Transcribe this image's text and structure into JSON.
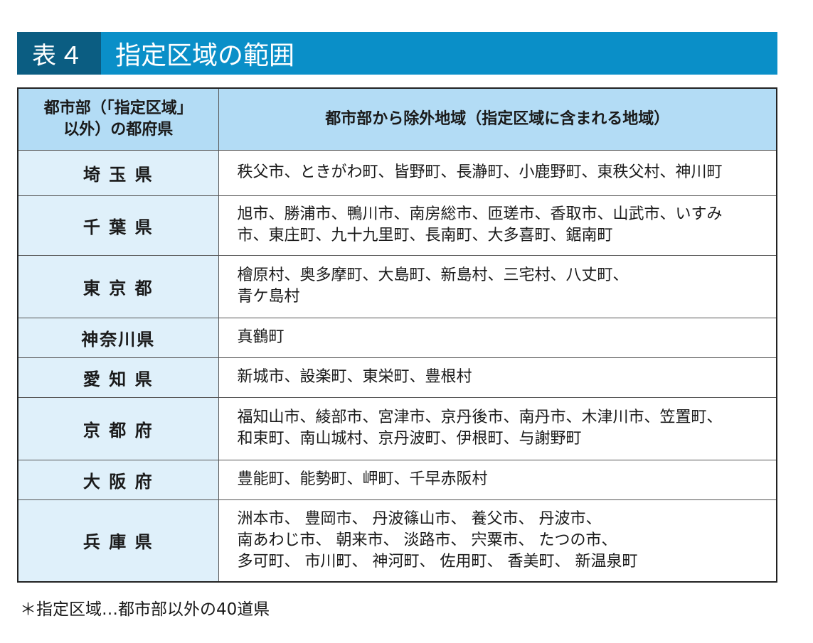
{
  "title": {
    "number": "表４",
    "text": "指定区域の範囲"
  },
  "table": {
    "headers": [
      "都市部（「指定区域」以外）の都府県",
      "都市部から除外地域（指定区域に含まれる地域）"
    ],
    "header_lines": [
      [
        "都市部（「指定区域」",
        "以外）の都府県"
      ]
    ],
    "rows": [
      {
        "pref": "埼 玉 県",
        "lines": [
          "秩父市、ときがわ町、皆野町、長瀞町、小鹿野町、東秩父村、神川町"
        ]
      },
      {
        "pref": "千 葉 県",
        "lines": [
          "旭市、勝浦市、鴨川市、南房総市、匝瑳市、香取市、山武市、いすみ",
          "市、東庄町、九十九里町、長南町、大多喜町、鋸南町"
        ]
      },
      {
        "pref": "東 京 都",
        "lines": [
          "檜原村、奥多摩町、大島町、新島村、三宅村、八丈町、",
          "青ケ島村"
        ]
      },
      {
        "pref": "神奈川県",
        "lines": [
          "真鶴町"
        ]
      },
      {
        "pref": "愛 知 県",
        "lines": [
          "新城市、設楽町、東栄町、豊根村"
        ]
      },
      {
        "pref": "京 都 府",
        "lines": [
          "福知山市、綾部市、宮津市、京丹後市、南丹市、木津川市、笠置町、",
          "和束町、南山城村、京丹波町、伊根町、与謝野町"
        ]
      },
      {
        "pref": "大 阪 府",
        "lines": [
          "豊能町、能勢町、岬町、千早赤阪村"
        ]
      },
      {
        "pref": "兵 庫 県",
        "lines": [
          "洲本市、 豊岡市、 丹波篠山市、 養父市、 丹波市、",
          "南あわじ市、 朝来市、 淡路市、 宍粟市、 たつの市、",
          "多可町、 市川町、 神河町、 佐用町、 香美町、 新温泉町"
        ]
      }
    ]
  },
  "footnote": "＊指定区域…都市部以外の40道県",
  "colors": {
    "title_dark": "#0b5d82",
    "title_bar": "#0a8fc8",
    "header_bg": "#b3dcf5",
    "pref_bg": "#dff0fa"
  }
}
